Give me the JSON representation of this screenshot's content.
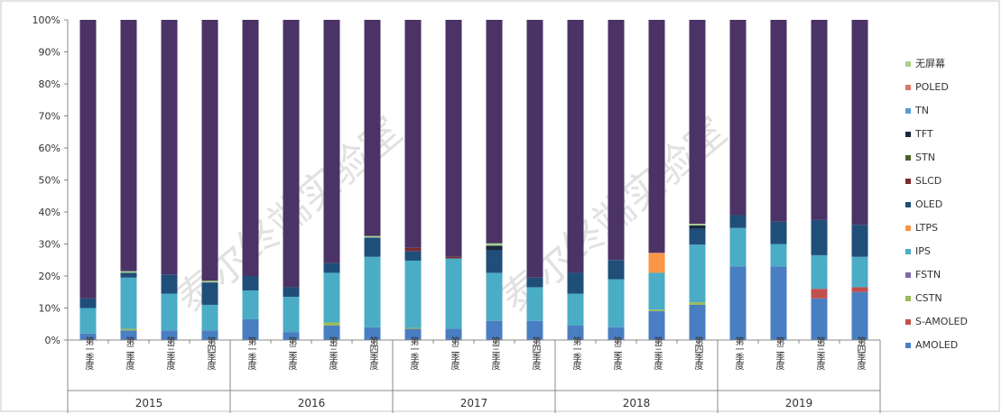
{
  "chart_data": {
    "type": "bar",
    "stacked": true,
    "percent": true,
    "title": "",
    "xlabel": "",
    "ylabel": "",
    "ylim": [
      0,
      100
    ],
    "y_ticks": [
      "0%",
      "10%",
      "20%",
      "30%",
      "40%",
      "50%",
      "60%",
      "70%",
      "80%",
      "90%",
      "100%"
    ],
    "grid": false,
    "legend_position": "right",
    "groups": [
      {
        "label": "2015",
        "categories": [
          "第一季度",
          "第二季度",
          "第三季度",
          "第四季度"
        ]
      },
      {
        "label": "2016",
        "categories": [
          "第一季度",
          "第二季度",
          "第三季度",
          "第四季度"
        ]
      },
      {
        "label": "2017",
        "categories": [
          "第一季度",
          "第二季度",
          "第三季度",
          "第四季度"
        ]
      },
      {
        "label": "2018",
        "categories": [
          "第一季度",
          "第二季度",
          "第三季度",
          "第四季度"
        ]
      },
      {
        "label": "2019",
        "categories": [
          "第一季度",
          "第二季度",
          "第三季度",
          "第四季度"
        ]
      }
    ],
    "series": [
      {
        "name": "AMOLED",
        "color": "#4a7ec2",
        "values": [
          2,
          3,
          3,
          3,
          6.5,
          2.5,
          4.5,
          4,
          3.5,
          3.5,
          6,
          6,
          4.5,
          4,
          9,
          11,
          23,
          23,
          13,
          15
        ]
      },
      {
        "name": "S-AMOLED",
        "color": "#c0504d",
        "values": [
          0,
          0,
          0,
          0,
          0,
          0,
          0,
          0,
          0,
          0,
          0,
          0,
          0,
          0,
          0,
          0,
          0,
          0,
          3,
          1.5
        ]
      },
      {
        "name": "CSTN",
        "color": "#9bbb59",
        "values": [
          0,
          0.5,
          0,
          0,
          0,
          0,
          1,
          0,
          0.3,
          0,
          0,
          0,
          0,
          0,
          0.5,
          0.8,
          0,
          0,
          0,
          0
        ]
      },
      {
        "name": "FSTN",
        "color": "#7f6aa6",
        "values": [
          0,
          0,
          0,
          0,
          0,
          0,
          0,
          0,
          0,
          0,
          0,
          0,
          0,
          0,
          0,
          0,
          0,
          0,
          0,
          0
        ]
      },
      {
        "name": "IPS",
        "color": "#4bacc6",
        "values": [
          8,
          16,
          11.5,
          8,
          9,
          11,
          15.5,
          22,
          21,
          22,
          15,
          10.5,
          10,
          15,
          11.5,
          18,
          12,
          7,
          10.5,
          9.5
        ]
      },
      {
        "name": "LTPS",
        "color": "#f79646",
        "values": [
          0,
          0,
          0,
          0,
          0,
          0,
          0,
          0,
          0,
          0,
          0,
          0,
          0,
          0,
          6,
          0,
          0,
          0,
          0,
          0
        ]
      },
      {
        "name": "OLED",
        "color": "#1f4e79",
        "values": [
          3,
          1.5,
          6,
          7,
          4.5,
          3,
          3,
          6,
          3,
          0,
          7,
          3,
          6.5,
          6,
          0,
          5,
          4,
          7,
          11,
          10
        ]
      },
      {
        "name": "SLCD",
        "color": "#7b2c2c",
        "values": [
          0,
          0,
          0,
          0,
          0,
          0,
          0,
          0,
          1,
          0.5,
          0,
          0,
          0,
          0,
          0,
          0,
          0,
          0,
          0,
          0
        ]
      },
      {
        "name": "STN",
        "color": "#4f6228",
        "values": [
          0,
          0,
          0,
          0,
          0,
          0,
          0,
          0,
          0,
          0,
          0,
          0,
          0,
          0,
          0,
          0,
          0,
          0,
          0,
          0
        ]
      },
      {
        "name": "TFT",
        "color": "#1b2a40",
        "values": [
          0,
          0,
          0,
          0,
          0,
          0,
          0,
          0,
          0,
          0,
          1.5,
          0,
          0,
          0,
          0,
          1,
          0,
          0,
          0,
          0
        ]
      },
      {
        "name": "TN",
        "color": "#5b9bd5",
        "values": [
          0,
          0,
          0,
          0,
          0,
          0,
          0,
          0,
          0,
          0,
          0,
          0,
          0,
          0,
          0,
          0,
          0,
          0,
          0,
          0
        ]
      },
      {
        "name": "POLED",
        "color": "#d9776a",
        "values": [
          0,
          0,
          0,
          0,
          0,
          0,
          0,
          0,
          0,
          0,
          0,
          0,
          0,
          0,
          0.3,
          0,
          0,
          0,
          0,
          0
        ]
      },
      {
        "name": "无屏幕",
        "color": "#a9d18e",
        "values": [
          0,
          0.5,
          0,
          0.5,
          0,
          0,
          0,
          0.5,
          0,
          0,
          0.7,
          0,
          0,
          0,
          0,
          0.5,
          0,
          0,
          0,
          0
        ]
      },
      {
        "name": "",
        "color": "#4b3366",
        "values": [
          87,
          78.5,
          79.5,
          81.5,
          80,
          83.5,
          76,
          67.5,
          71.2,
          74,
          69.8,
          80.5,
          79,
          75,
          72.7,
          63.7,
          61,
          63,
          62.5,
          64
        ]
      }
    ],
    "legend_order": [
      "无屏幕",
      "POLED",
      "TN",
      "TFT",
      "STN",
      "SLCD",
      "OLED",
      "LTPS",
      "IPS",
      "FSTN",
      "CSTN",
      "S-AMOLED",
      "AMOLED"
    ]
  },
  "watermark": "泰尔终端实验室"
}
